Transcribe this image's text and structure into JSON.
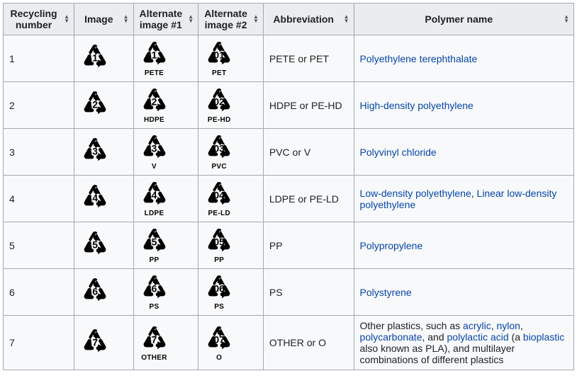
{
  "colors": {
    "table_border": "#a2a9b1",
    "header_bg": "#eaecf0",
    "cell_bg": "#f8f9fa",
    "link": "#0645ad",
    "text": "#202122",
    "icon": "#000000"
  },
  "headers": {
    "recycling_number": "Recycling number",
    "image": "Image",
    "alt1": "Alternate image #1",
    "alt2": "Alternate image #2",
    "abbr": "Abbreviation",
    "polymer": "Polymer name"
  },
  "rows": [
    {
      "num": "1",
      "img_num": "1",
      "alt1_num": "1",
      "alt1_label": "PETE",
      "alt2_num": "01",
      "alt2_label": "PET",
      "abbr": "PETE or PET",
      "links": [
        {
          "text": "Polyethylene terephthalate"
        }
      ]
    },
    {
      "num": "2",
      "img_num": "2",
      "alt1_num": "2",
      "alt1_label": "HDPE",
      "alt2_num": "02",
      "alt2_label": "PE-HD",
      "abbr": "HDPE or PE-HD",
      "links": [
        {
          "text": "High-density polyethylene"
        }
      ]
    },
    {
      "num": "3",
      "img_num": "3",
      "alt1_num": "3",
      "alt1_label": "V",
      "alt2_num": "03",
      "alt2_label": "PVC",
      "abbr": "PVC or V",
      "links": [
        {
          "text": "Polyvinyl chloride"
        }
      ]
    },
    {
      "num": "4",
      "img_num": "4",
      "alt1_num": "4",
      "alt1_label": "LDPE",
      "alt2_num": "04",
      "alt2_label": "PE-LD",
      "abbr": "LDPE or PE-LD",
      "links": [
        {
          "text": "Low-density polyethylene"
        },
        {
          "text": "Linear low-density polyethylene"
        }
      ],
      "sep": ", "
    },
    {
      "num": "5",
      "img_num": "5",
      "alt1_num": "5",
      "alt1_label": "PP",
      "alt2_num": "05",
      "alt2_label": "PP",
      "abbr": "PP",
      "links": [
        {
          "text": "Polypropylene"
        }
      ]
    },
    {
      "num": "6",
      "img_num": "6",
      "alt1_num": "6",
      "alt1_label": "PS",
      "alt2_num": "06",
      "alt2_label": "PS",
      "abbr": "PS",
      "links": [
        {
          "text": "Polystyrene"
        }
      ]
    },
    {
      "num": "7",
      "img_num": "7",
      "alt1_num": "7",
      "alt1_label": "OTHER",
      "alt2_num": "07",
      "alt2_label": "O",
      "abbr": "OTHER or O",
      "custom": {
        "pre": "Other plastics, such as ",
        "l1": "acrylic",
        "s1": ", ",
        "l2": "nylon",
        "s2": ", ",
        "l3": "polycarbonate",
        "s3": ", and ",
        "l4": "polylactic acid",
        "s4": " (a ",
        "l5": "bioplastic",
        "s5": " also known as PLA), and multilayer combinations of different plastics"
      }
    }
  ]
}
